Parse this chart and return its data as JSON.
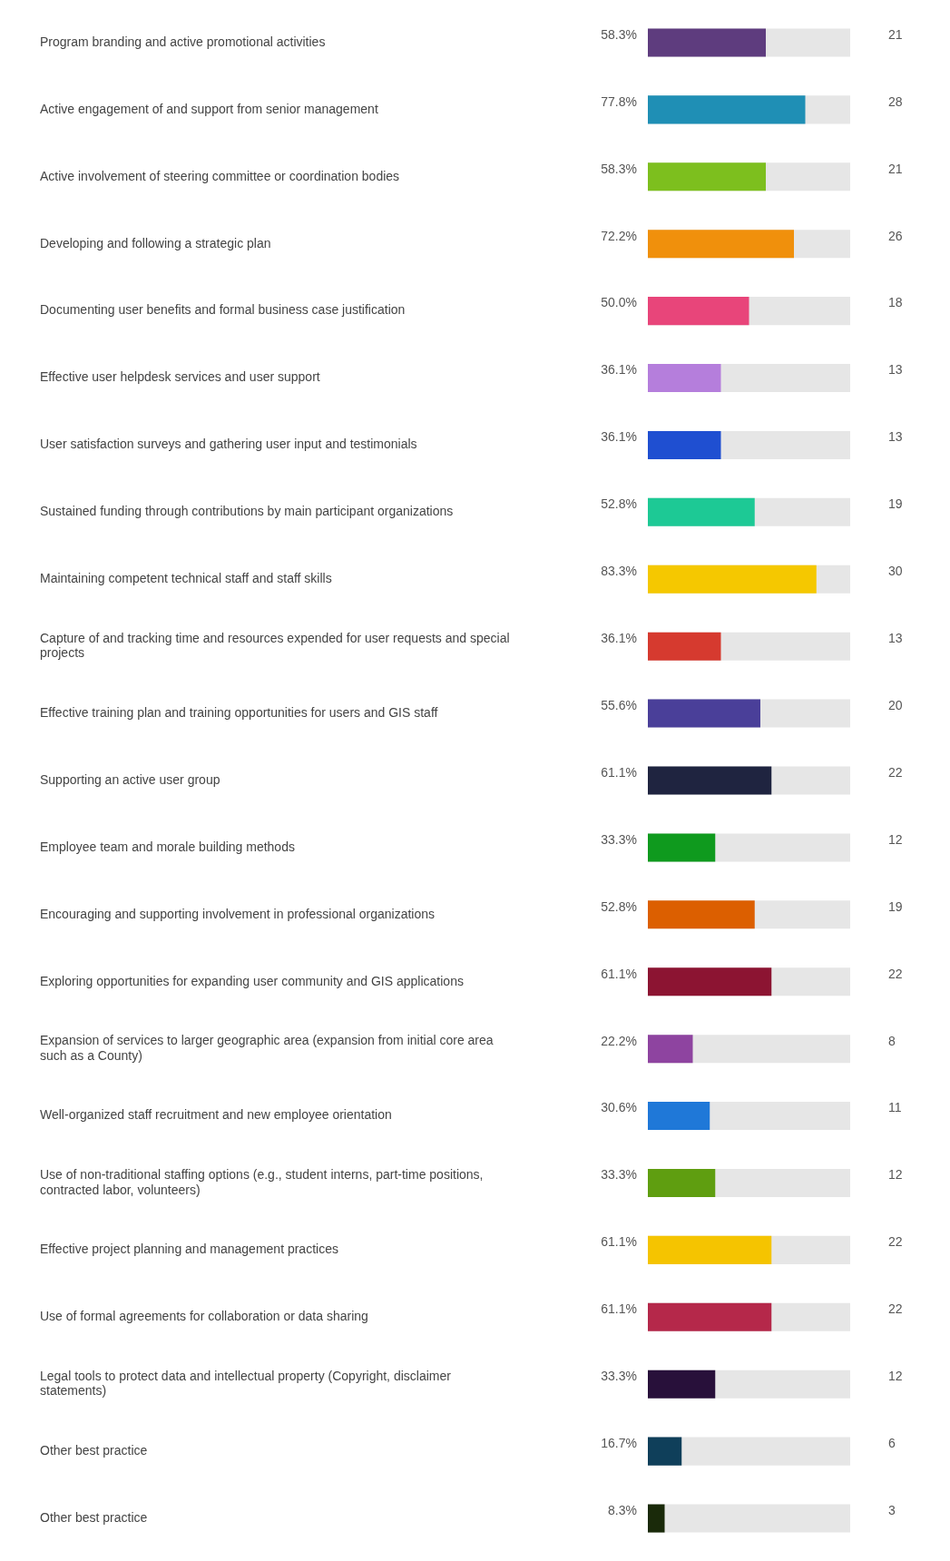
{
  "chart_data": {
    "type": "bar",
    "orientation": "horizontal",
    "tick_labels": "y",
    "grid": false,
    "legend": false,
    "xlim": [
      0,
      100
    ],
    "categories": [
      "Program branding and active promotional activities",
      "Active engagement of and support from senior management",
      "Active involvement of steering committee or coordination bodies",
      "Developing and following a strategic plan",
      "Documenting user benefits and formal business case justification",
      "Effective user helpdesk services and user support",
      "User satisfaction surveys and gathering user input and testimonials",
      "Sustained funding through contributions by main participant organizations",
      "Maintaining competent technical staff and staff skills",
      "Capture of and tracking time and resources expended for user requests and special projects",
      "Effective training plan and training opportunities for users and GIS staff",
      "Supporting an active user group",
      "Employee team and morale building methods",
      "Encouraging and supporting involvement in professional organizations",
      "Exploring opportunities for expanding user community and GIS applications",
      "Expansion of services to larger geographic area (expansion from initial core area such as a County)",
      "Well-organized staff recruitment and new employee orientation",
      "Use of non-traditional staffing options (e.g., student interns, part-time positions, contracted labor, volunteers)",
      "Effective project planning and management practices",
      "Use of formal agreements for collaboration or data sharing",
      "Legal tools to protect data and intellectual property (Copyright, disclaimer statements)",
      "Other best practice",
      "Other best practice"
    ],
    "values": [
      58.3,
      77.8,
      58.3,
      72.2,
      50.0,
      36.1,
      36.1,
      52.8,
      83.3,
      36.1,
      55.6,
      61.1,
      33.3,
      52.8,
      61.1,
      22.2,
      30.6,
      33.3,
      61.1,
      61.1,
      33.3,
      16.7,
      8.3
    ],
    "value_labels": [
      "58.3%",
      "77.8%",
      "58.3%",
      "72.2%",
      "50.0%",
      "36.1%",
      "36.1%",
      "52.8%",
      "83.3%",
      "36.1%",
      "55.6%",
      "61.1%",
      "33.3%",
      "52.8%",
      "61.1%",
      "22.2%",
      "30.6%",
      "33.3%",
      "61.1%",
      "61.1%",
      "33.3%",
      "16.7%",
      "8.3%"
    ],
    "colors": [
      "#5e3c7e",
      "#1f8fb5",
      "#7dbf1e",
      "#f0900c",
      "#e8457a",
      "#b57edc",
      "#1f4fd1",
      "#1dc995",
      "#f5c800",
      "#d63a2f",
      "#4a3f99",
      "#1f2440",
      "#0f9a1e",
      "#dc5f00",
      "#8c1432",
      "#8e44a0",
      "#1f78d8",
      "#5f9e10",
      "#f5c400",
      "#b5284a",
      "#28103a",
      "#0f3f5a",
      "#1a2a0a"
    ],
    "annotations": [
      "21",
      "28",
      "21",
      "26",
      "18",
      "13",
      "13",
      "19",
      "30",
      "13",
      "20",
      "22",
      "12",
      "19",
      "22",
      "8",
      "11",
      "12",
      "22",
      "22",
      "12",
      "6",
      "3"
    ]
  }
}
